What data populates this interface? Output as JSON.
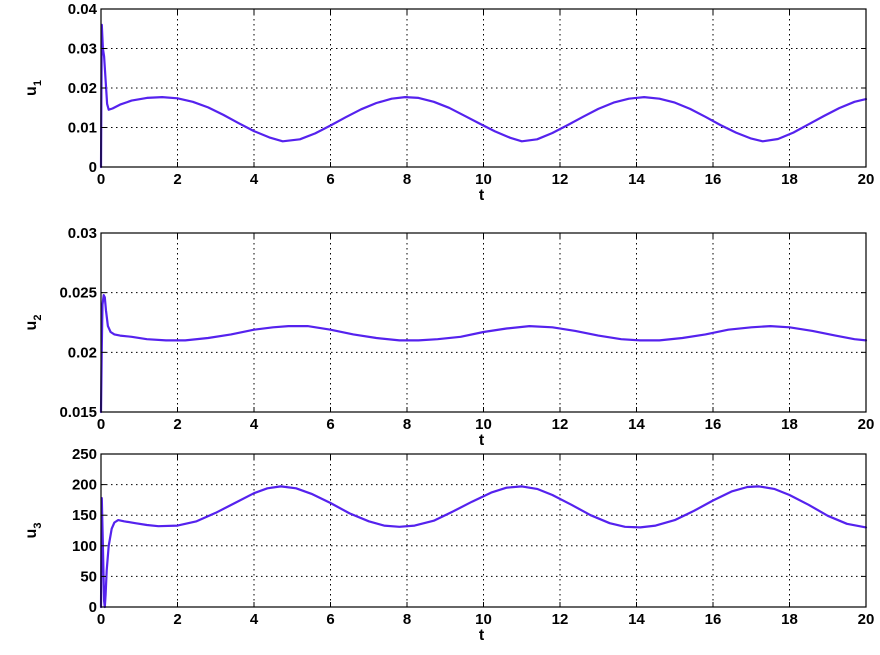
{
  "chart_data": [
    {
      "type": "line",
      "title": "",
      "xlabel": "t",
      "ylabel": "u",
      "ylabel_sub": "1",
      "xlim": [
        0,
        20
      ],
      "ylim": [
        0,
        0.04
      ],
      "xticks": [
        0,
        2,
        4,
        6,
        8,
        10,
        12,
        14,
        16,
        18,
        20
      ],
      "xtick_labels": [
        "0",
        "2",
        "4",
        "6",
        "8",
        "10",
        "12",
        "14",
        "16",
        "18",
        "20"
      ],
      "yticks": [
        0,
        0.01,
        0.02,
        0.03,
        0.04
      ],
      "ytick_labels": [
        "0",
        "0.01",
        "0.02",
        "0.03",
        "0.04"
      ],
      "grid": true,
      "color": "#5522ee",
      "series": [
        {
          "name": "",
          "x": [
            0,
            0.02,
            0.05,
            0.08,
            0.12,
            0.16,
            0.2,
            0.3,
            0.5,
            0.8,
            1.2,
            1.6,
            2.0,
            2.4,
            2.8,
            3.2,
            3.6,
            4.0,
            4.4,
            4.75,
            5.2,
            5.6,
            6.0,
            6.4,
            6.8,
            7.2,
            7.6,
            7.95,
            8.3,
            8.7,
            9.1,
            9.5,
            9.9,
            10.3,
            10.7,
            11.0,
            11.4,
            11.8,
            12.2,
            12.6,
            13.0,
            13.4,
            13.8,
            14.2,
            14.6,
            15.0,
            15.4,
            15.8,
            16.2,
            16.6,
            17.0,
            17.3,
            17.7,
            18.1,
            18.5,
            18.9,
            19.3,
            19.7,
            20.0
          ],
          "y": [
            0.0,
            0.036,
            0.03,
            0.028,
            0.022,
            0.016,
            0.0145,
            0.0148,
            0.0158,
            0.0168,
            0.0175,
            0.0177,
            0.0174,
            0.0165,
            0.0151,
            0.0132,
            0.0111,
            0.0091,
            0.0075,
            0.0065,
            0.007,
            0.0085,
            0.0105,
            0.0126,
            0.0146,
            0.0162,
            0.0173,
            0.0177,
            0.0175,
            0.0165,
            0.015,
            0.013,
            0.011,
            0.009,
            0.0074,
            0.0065,
            0.007,
            0.0086,
            0.0106,
            0.0127,
            0.0147,
            0.0163,
            0.0173,
            0.0177,
            0.0173,
            0.0163,
            0.0147,
            0.0127,
            0.0106,
            0.0087,
            0.0072,
            0.0065,
            0.0071,
            0.0087,
            0.0108,
            0.0129,
            0.0149,
            0.0165,
            0.0172
          ]
        }
      ]
    },
    {
      "type": "line",
      "title": "",
      "xlabel": "t",
      "ylabel": "u",
      "ylabel_sub": "2",
      "xlim": [
        0,
        20
      ],
      "ylim": [
        0.015,
        0.03
      ],
      "xticks": [
        0,
        2,
        4,
        6,
        8,
        10,
        12,
        14,
        16,
        18,
        20
      ],
      "xtick_labels": [
        "0",
        "2",
        "4",
        "6",
        "8",
        "10",
        "12",
        "14",
        "16",
        "18",
        "20"
      ],
      "yticks": [
        0.015,
        0.02,
        0.025,
        0.03
      ],
      "ytick_labels": [
        "0.015",
        "0.02",
        "0.025",
        "0.03"
      ],
      "grid": true,
      "color": "#5522ee",
      "series": [
        {
          "name": "",
          "x": [
            0,
            0.02,
            0.04,
            0.07,
            0.1,
            0.13,
            0.18,
            0.25,
            0.35,
            0.5,
            0.8,
            1.2,
            1.7,
            2.2,
            2.8,
            3.4,
            4.0,
            4.5,
            4.9,
            5.4,
            6.0,
            6.6,
            7.2,
            7.8,
            8.3,
            8.8,
            9.4,
            10.0,
            10.6,
            11.2,
            11.8,
            12.4,
            13.0,
            13.6,
            14.1,
            14.6,
            15.2,
            15.8,
            16.4,
            17.0,
            17.5,
            18.0,
            18.6,
            19.2,
            19.7,
            20.0
          ],
          "y": [
            0.015,
            0.0205,
            0.024,
            0.0248,
            0.0246,
            0.0235,
            0.0222,
            0.0217,
            0.0215,
            0.0214,
            0.0213,
            0.0211,
            0.021,
            0.021,
            0.0212,
            0.0215,
            0.0219,
            0.0221,
            0.0222,
            0.0222,
            0.0219,
            0.0215,
            0.0212,
            0.021,
            0.021,
            0.0211,
            0.0213,
            0.0217,
            0.022,
            0.0222,
            0.0221,
            0.0218,
            0.0214,
            0.0211,
            0.021,
            0.021,
            0.0212,
            0.0215,
            0.0219,
            0.0221,
            0.0222,
            0.0221,
            0.0218,
            0.0214,
            0.0211,
            0.021
          ]
        }
      ]
    },
    {
      "type": "line",
      "title": "",
      "xlabel": "t",
      "ylabel": "u",
      "ylabel_sub": "3",
      "xlim": [
        0,
        20
      ],
      "ylim": [
        0,
        250
      ],
      "xticks": [
        0,
        2,
        4,
        6,
        8,
        10,
        12,
        14,
        16,
        18,
        20
      ],
      "xtick_labels": [
        "0",
        "2",
        "4",
        "6",
        "8",
        "10",
        "12",
        "14",
        "16",
        "18",
        "20"
      ],
      "yticks": [
        0,
        50,
        100,
        150,
        200,
        250
      ],
      "ytick_labels": [
        "0",
        "50",
        "100",
        "150",
        "200",
        "250"
      ],
      "grid": true,
      "color": "#5522ee",
      "series": [
        {
          "name": "",
          "x": [
            0,
            0.02,
            0.05,
            0.08,
            0.1,
            0.12,
            0.15,
            0.2,
            0.28,
            0.35,
            0.45,
            0.6,
            0.9,
            1.2,
            1.5,
            2.0,
            2.5,
            3.0,
            3.5,
            4.0,
            4.35,
            4.7,
            5.1,
            5.5,
            6.0,
            6.5,
            7.0,
            7.4,
            7.8,
            8.2,
            8.7,
            9.2,
            9.7,
            10.2,
            10.6,
            11.0,
            11.4,
            11.8,
            12.3,
            12.8,
            13.3,
            13.7,
            14.1,
            14.5,
            15.0,
            15.5,
            16.0,
            16.5,
            16.9,
            17.2,
            17.6,
            18.0,
            18.5,
            19.0,
            19.5,
            20.0
          ],
          "y": [
            0,
            178,
            100,
            10,
            0,
            20,
            60,
            100,
            128,
            138,
            142,
            140,
            137,
            134,
            132,
            133,
            140,
            154,
            170,
            186,
            194,
            197,
            194,
            185,
            170,
            153,
            140,
            133,
            131,
            133,
            141,
            156,
            172,
            187,
            195,
            197,
            193,
            183,
            167,
            150,
            137,
            131,
            130,
            133,
            142,
            157,
            174,
            189,
            196,
            197,
            193,
            183,
            167,
            149,
            136,
            130
          ]
        }
      ]
    }
  ]
}
